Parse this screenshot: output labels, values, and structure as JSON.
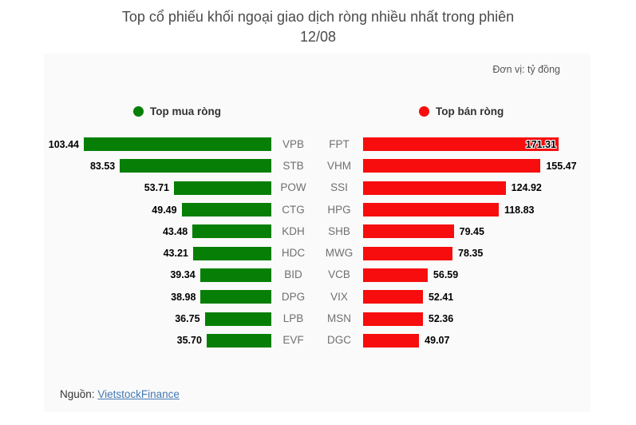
{
  "page": {
    "title_line1": "Top cổ phiếu khối ngoại giao dịch ròng nhiều nhất trong phiên",
    "title_line2": "12/08"
  },
  "card": {
    "unit_label": "Đơn vị: tỷ đồng",
    "source_prefix": "Nguồn:",
    "source_link": "VietstockFinance"
  },
  "chart_data": {
    "type": "bar",
    "orientation": "horizontal",
    "title": "Top cổ phiếu khối ngoại giao dịch ròng nhiều nhất trong phiên 12/08",
    "unit": "tỷ đồng",
    "legend": [
      {
        "label": "Top mua ròng",
        "color": "#077f07"
      },
      {
        "label": "Top bán ròng",
        "color": "#f70d0d"
      }
    ],
    "series": [
      {
        "name": "Top mua ròng",
        "color": "#077f07",
        "axis_max": 103.44,
        "data": [
          {
            "ticker": "VPB",
            "value": 103.44
          },
          {
            "ticker": "STB",
            "value": 83.53
          },
          {
            "ticker": "POW",
            "value": 53.71
          },
          {
            "ticker": "CTG",
            "value": 49.49
          },
          {
            "ticker": "KDH",
            "value": 43.48
          },
          {
            "ticker": "HDC",
            "value": 43.21
          },
          {
            "ticker": "BID",
            "value": 39.34
          },
          {
            "ticker": "DPG",
            "value": 38.98
          },
          {
            "ticker": "LPB",
            "value": 36.75
          },
          {
            "ticker": "EVF",
            "value": 35.7
          }
        ]
      },
      {
        "name": "Top bán ròng",
        "color": "#f70d0d",
        "axis_max": 171.31,
        "data": [
          {
            "ticker": "FPT",
            "value": 171.31
          },
          {
            "ticker": "VHM",
            "value": 155.47
          },
          {
            "ticker": "SSI",
            "value": 124.92
          },
          {
            "ticker": "HPG",
            "value": 118.83
          },
          {
            "ticker": "SHB",
            "value": 79.45
          },
          {
            "ticker": "MWG",
            "value": 78.35
          },
          {
            "ticker": "VCB",
            "value": 56.59
          },
          {
            "ticker": "VIX",
            "value": 52.41
          },
          {
            "ticker": "MSN",
            "value": 52.36
          },
          {
            "ticker": "DGC",
            "value": 49.07
          }
        ]
      }
    ]
  }
}
